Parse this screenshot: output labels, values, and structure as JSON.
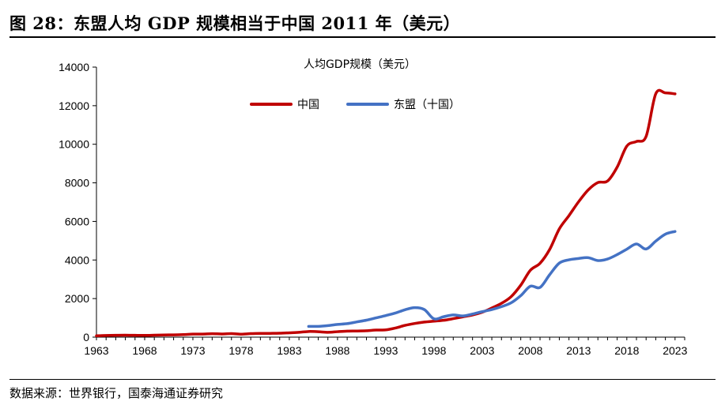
{
  "figure": {
    "title": "图 28：东盟人均 GDP 规模相当于中国 2011 年（美元）",
    "source": "数据来源：世界银行，国泰海通证券研究"
  },
  "chart_data": {
    "type": "line",
    "title": "人均GDP规模（美元）",
    "xlabel": "",
    "ylabel": "",
    "xlim": [
      1963,
      2024
    ],
    "ylim": [
      0,
      14000
    ],
    "x_ticks": [
      1963,
      1968,
      1973,
      1978,
      1983,
      1988,
      1993,
      1998,
      2003,
      2008,
      2013,
      2018,
      2023
    ],
    "y_ticks": [
      0,
      2000,
      4000,
      6000,
      8000,
      10000,
      12000,
      14000
    ],
    "grid": false,
    "legend": "top-center",
    "series": [
      {
        "name": "中国",
        "color": "#c00000",
        "x": [
          1963,
          1964,
          1965,
          1966,
          1967,
          1968,
          1969,
          1970,
          1971,
          1972,
          1973,
          1974,
          1975,
          1976,
          1977,
          1978,
          1979,
          1980,
          1981,
          1982,
          1983,
          1984,
          1985,
          1986,
          1987,
          1988,
          1989,
          1990,
          1991,
          1992,
          1993,
          1994,
          1995,
          1996,
          1997,
          1998,
          1999,
          2000,
          2001,
          2002,
          2003,
          2004,
          2005,
          2006,
          2007,
          2008,
          2009,
          2010,
          2011,
          2012,
          2013,
          2014,
          2015,
          2016,
          2017,
          2018,
          2019,
          2020,
          2021,
          2022,
          2023
        ],
        "values": [
          70,
          85,
          98,
          103,
          95,
          90,
          100,
          113,
          118,
          132,
          157,
          160,
          178,
          165,
          185,
          156,
          183,
          195,
          197,
          203,
          225,
          250,
          294,
          282,
          252,
          284,
          311,
          318,
          333,
          366,
          377,
          473,
          610,
          709,
          781,
          828,
          873,
          959,
          1053,
          1149,
          1288,
          1509,
          1753,
          2099,
          2694,
          3468,
          3832,
          4550,
          5614,
          6300,
          7020,
          7636,
          8016,
          8094,
          8817,
          9905,
          10144,
          10409,
          12617,
          12663,
          12614
        ]
      },
      {
        "name": "东盟（十国）",
        "color": "#4472c4",
        "x": [
          1985,
          1986,
          1987,
          1988,
          1989,
          1990,
          1991,
          1992,
          1993,
          1994,
          1995,
          1996,
          1997,
          1998,
          1999,
          2000,
          2001,
          2002,
          2003,
          2004,
          2005,
          2006,
          2007,
          2008,
          2009,
          2010,
          2011,
          2012,
          2013,
          2014,
          2015,
          2016,
          2017,
          2018,
          2019,
          2020,
          2021,
          2022,
          2023
        ],
        "values": [
          560,
          560,
          600,
          660,
          700,
          790,
          880,
          1000,
          1120,
          1250,
          1420,
          1530,
          1430,
          950,
          1060,
          1150,
          1100,
          1200,
          1320,
          1430,
          1580,
          1780,
          2150,
          2640,
          2580,
          3240,
          3840,
          4010,
          4080,
          4120,
          3970,
          4050,
          4280,
          4560,
          4830,
          4570,
          4980,
          5340,
          5480
        ]
      }
    ]
  }
}
